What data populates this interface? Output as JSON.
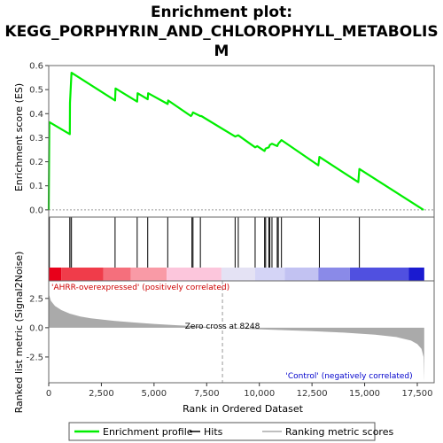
{
  "chart_data": {
    "type": "line",
    "title_lines": [
      "Enrichment plot:",
      "KEGG_PORPHYRIN_AND_CHLOROPHYLL_METABOLIS",
      "M"
    ],
    "colors": {
      "enrichment": "#00ee00",
      "hits": "#000000",
      "metric": "#aaaaaa",
      "pos_label": "#cc0000",
      "neg_label": "#0000cc",
      "zero_line": "#999999"
    },
    "x_axis": {
      "label": "Rank in Ordered Dataset",
      "ticks": [
        0,
        2500,
        5000,
        7500,
        10000,
        12500,
        15000,
        17500
      ],
      "tick_labels": [
        "0",
        "2,500",
        "5,000",
        "7,500",
        "10,000",
        "12,500",
        "15,000",
        "17,500"
      ],
      "range": [
        0,
        18300
      ]
    },
    "es_panel": {
      "ylabel": "Enrichment score (ES)",
      "ylim": [
        -0.03,
        0.6
      ],
      "yticks": [
        0.0,
        0.1,
        0.2,
        0.3,
        0.4,
        0.5,
        0.6
      ],
      "ytick_labels": [
        "0.0",
        "0.1",
        "0.2",
        "0.3",
        "0.4",
        "0.5",
        "0.6"
      ],
      "points": [
        [
          0,
          0.0
        ],
        [
          30,
          0.365
        ],
        [
          1000,
          0.315
        ],
        [
          1010,
          0.445
        ],
        [
          1080,
          0.57
        ],
        [
          3150,
          0.455
        ],
        [
          3170,
          0.505
        ],
        [
          4200,
          0.45
        ],
        [
          4220,
          0.485
        ],
        [
          4700,
          0.46
        ],
        [
          4720,
          0.485
        ],
        [
          5650,
          0.44
        ],
        [
          5670,
          0.455
        ],
        [
          6750,
          0.39
        ],
        [
          6800,
          0.395
        ],
        [
          6850,
          0.405
        ],
        [
          7200,
          0.39
        ],
        [
          7250,
          0.39
        ],
        [
          8850,
          0.305
        ],
        [
          9000,
          0.31
        ],
        [
          9800,
          0.26
        ],
        [
          9900,
          0.265
        ],
        [
          10250,
          0.245
        ],
        [
          10300,
          0.255
        ],
        [
          10450,
          0.26
        ],
        [
          10500,
          0.27
        ],
        [
          10600,
          0.275
        ],
        [
          10850,
          0.265
        ],
        [
          10900,
          0.275
        ],
        [
          11050,
          0.29
        ],
        [
          12800,
          0.185
        ],
        [
          12850,
          0.22
        ],
        [
          14700,
          0.115
        ],
        [
          14750,
          0.17
        ],
        [
          17800,
          0.0
        ]
      ]
    },
    "hits": [
      30,
      1000,
      1010,
      1080,
      3150,
      4200,
      4700,
      5650,
      6800,
      6850,
      7200,
      8850,
      9000,
      9800,
      10250,
      10300,
      10450,
      10500,
      10600,
      10850,
      10900,
      11050,
      12850,
      14750
    ],
    "metric_panel": {
      "ylabel": "Ranked list metric (Signal2Noise)",
      "ylim": [
        -4.7,
        4.0
      ],
      "yticks": [
        -2.5,
        0.0,
        2.5
      ],
      "ytick_labels": [
        "-2.5",
        "0.0",
        "2.5"
      ],
      "curve": [
        [
          0,
          2.9
        ],
        [
          100,
          2.3
        ],
        [
          300,
          1.85
        ],
        [
          600,
          1.5
        ],
        [
          1000,
          1.2
        ],
        [
          1500,
          0.95
        ],
        [
          2000,
          0.8
        ],
        [
          3000,
          0.6
        ],
        [
          4000,
          0.45
        ],
        [
          5000,
          0.32
        ],
        [
          6000,
          0.22
        ],
        [
          7000,
          0.13
        ],
        [
          8248,
          0.0
        ],
        [
          9500,
          -0.1
        ],
        [
          11000,
          -0.2
        ],
        [
          12500,
          -0.3
        ],
        [
          14000,
          -0.42
        ],
        [
          15500,
          -0.6
        ],
        [
          16500,
          -0.8
        ],
        [
          17200,
          -1.1
        ],
        [
          17500,
          -1.4
        ],
        [
          17700,
          -1.8
        ],
        [
          17800,
          -2.5
        ],
        [
          17830,
          -4.6
        ]
      ],
      "zero_cross_rank": 8248,
      "zero_cross_label": "Zero cross at 8248",
      "pos_label": "'AHRR-overexpressed' (positively correlated)",
      "neg_label": "'Control' (negatively correlated)"
    },
    "color_bar_segments": [
      {
        "from": 0,
        "to": 600,
        "color": "#e8001a"
      },
      {
        "from": 600,
        "to": 2600,
        "color": "#f03c4a"
      },
      {
        "from": 2600,
        "to": 3900,
        "color": "#f56f7c"
      },
      {
        "from": 3900,
        "to": 5600,
        "color": "#f99aa6"
      },
      {
        "from": 5600,
        "to": 8200,
        "color": "#fcc6dc"
      },
      {
        "from": 8200,
        "to": 9800,
        "color": "#e4e2f4"
      },
      {
        "from": 9800,
        "to": 11200,
        "color": "#d4d4f6"
      },
      {
        "from": 11200,
        "to": 12800,
        "color": "#c2c2f2"
      },
      {
        "from": 12800,
        "to": 14300,
        "color": "#8a8ae8"
      },
      {
        "from": 14300,
        "to": 17100,
        "color": "#5050e0"
      },
      {
        "from": 17100,
        "to": 17830,
        "color": "#1a1ad0"
      }
    ],
    "legend": [
      {
        "label": "Enrichment profile",
        "kind": "line",
        "color": "#00ee00"
      },
      {
        "label": "Hits",
        "kind": "line",
        "color": "#000000"
      },
      {
        "label": "Ranking metric scores",
        "kind": "line",
        "color": "#aaaaaa"
      }
    ]
  }
}
